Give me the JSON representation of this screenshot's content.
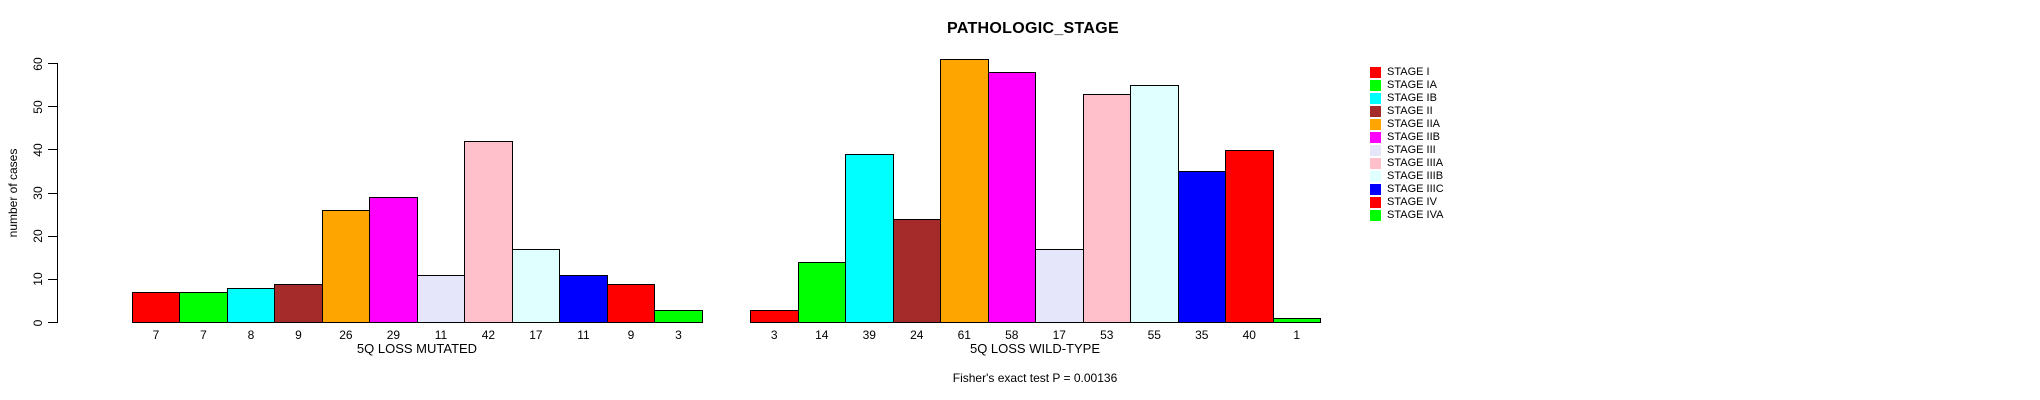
{
  "title": "PATHOLOGIC_STAGE",
  "footnote": "Fisher's exact test P = 0.00136",
  "chart_data": {
    "type": "bar",
    "title": "PATHOLOGIC_STAGE",
    "ylabel": "number of cases",
    "ylim": [
      0,
      60
    ],
    "yticks": [
      0,
      10,
      20,
      30,
      40,
      50,
      60
    ],
    "grid": false,
    "legend_position": "right",
    "series_labels": [
      "STAGE I",
      "STAGE IA",
      "STAGE IB",
      "STAGE II",
      "STAGE IIA",
      "STAGE IIB",
      "STAGE III",
      "STAGE IIIA",
      "STAGE IIIB",
      "STAGE IIIC",
      "STAGE IV",
      "STAGE IVA"
    ],
    "colors": [
      "#FF0000",
      "#00FF00",
      "#00FFFF",
      "#A52A2A",
      "#FFA500",
      "#FF00FF",
      "#E6E6FA",
      "#FFC0CB",
      "#E0FFFF",
      "#0000FF",
      "#FF0000",
      "#00FF00"
    ],
    "groups": [
      {
        "xlabel": "5Q LOSS MUTATED",
        "values": [
          7,
          7,
          8,
          9,
          26,
          29,
          11,
          42,
          17,
          11,
          9,
          3
        ]
      },
      {
        "xlabel": "5Q LOSS WILD-TYPE",
        "values": [
          3,
          14,
          39,
          24,
          61,
          58,
          17,
          53,
          55,
          35,
          40,
          1
        ]
      }
    ],
    "footnote": "Fisher's exact test P = 0.00136"
  }
}
